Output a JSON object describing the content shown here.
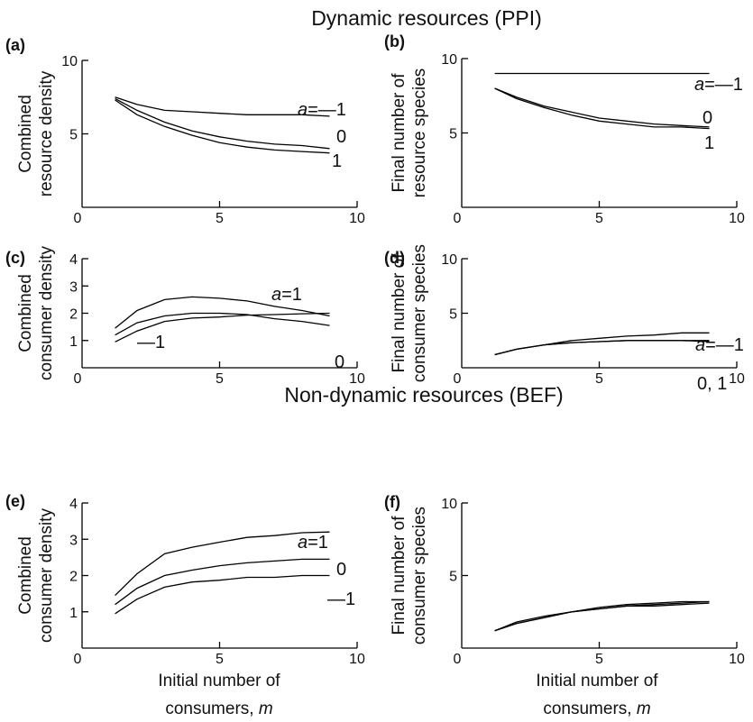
{
  "figure": {
    "sections": [
      {
        "key": "top",
        "title": "Dynamic resources (PPI)"
      },
      {
        "key": "bottom",
        "title": "Non-dynamic resources (BEF)"
      }
    ],
    "x_axis_title_lines": [
      "Initial number of",
      "consumers, "
    ],
    "x_axis_title_var": "m"
  },
  "chart_data": [
    {
      "panel": "(a)",
      "type": "line",
      "ylabel_lines": [
        "Combined",
        "resource density"
      ],
      "xlim": [
        0,
        10
      ],
      "ylim": [
        0,
        10
      ],
      "xticks": [
        0,
        5,
        10
      ],
      "yticks": [
        5,
        10
      ],
      "series": [
        {
          "x": [
            1.2,
            2,
            3,
            4,
            5,
            6,
            7,
            8,
            9
          ],
          "values": [
            7.5,
            7.0,
            6.6,
            6.5,
            6.4,
            6.3,
            6.3,
            6.3,
            6.2
          ],
          "label_parts": [
            "a",
            "=—1"
          ]
        },
        {
          "x": [
            1.2,
            2,
            3,
            4,
            5,
            6,
            7,
            8,
            9
          ],
          "values": [
            7.4,
            6.6,
            5.8,
            5.2,
            4.8,
            4.5,
            4.3,
            4.2,
            4.0
          ],
          "label_parts": [
            "",
            "0"
          ]
        },
        {
          "x": [
            1.2,
            2,
            3,
            4,
            5,
            6,
            7,
            8,
            9
          ],
          "values": [
            7.3,
            6.3,
            5.5,
            4.9,
            4.4,
            4.1,
            3.9,
            3.8,
            3.7
          ],
          "label_parts": [
            "",
            "1"
          ]
        }
      ]
    },
    {
      "panel": "(b)",
      "type": "line",
      "ylabel_lines": [
        "Final number of",
        "resource species"
      ],
      "xlim": [
        0,
        10
      ],
      "ylim": [
        0,
        10
      ],
      "xticks": [
        0,
        5,
        10
      ],
      "yticks": [
        5,
        10
      ],
      "series": [
        {
          "x": [
            1.2,
            2,
            3,
            4,
            5,
            6,
            7,
            8,
            9
          ],
          "values": [
            9,
            9,
            9,
            9,
            9,
            9,
            9,
            9,
            9
          ],
          "label_parts": [
            "a",
            "=—1"
          ]
        },
        {
          "x": [
            1.2,
            2,
            3,
            4,
            5,
            6,
            7,
            8,
            9
          ],
          "values": [
            8.0,
            7.4,
            6.8,
            6.4,
            6.0,
            5.8,
            5.6,
            5.5,
            5.4
          ],
          "label_parts": [
            "",
            "0"
          ]
        },
        {
          "x": [
            1.2,
            2,
            3,
            4,
            5,
            6,
            7,
            8,
            9
          ],
          "values": [
            8.0,
            7.3,
            6.7,
            6.2,
            5.8,
            5.6,
            5.4,
            5.4,
            5.3
          ],
          "label_parts": [
            "",
            "1"
          ]
        }
      ]
    },
    {
      "panel": "(c)",
      "type": "line",
      "ylabel_lines": [
        "Combined",
        "consumer density"
      ],
      "xlim": [
        0,
        10
      ],
      "ylim": [
        0,
        4
      ],
      "xticks": [
        0,
        5,
        10
      ],
      "yticks": [
        1,
        2,
        3,
        4
      ],
      "series": [
        {
          "x": [
            1.2,
            2,
            3,
            4,
            5,
            6,
            7,
            8,
            9
          ],
          "values": [
            1.45,
            2.1,
            2.5,
            2.6,
            2.55,
            2.45,
            2.25,
            2.1,
            1.9
          ],
          "label_parts": [
            "a",
            "=1"
          ]
        },
        {
          "x": [
            1.2,
            2,
            3,
            4,
            5,
            6,
            7,
            8,
            9
          ],
          "values": [
            1.2,
            1.65,
            1.9,
            2.0,
            2.0,
            1.95,
            1.8,
            1.7,
            1.55
          ],
          "label_parts": [
            "",
            "0"
          ]
        },
        {
          "x": [
            1.2,
            2,
            3,
            4,
            5,
            6,
            7,
            8,
            9
          ],
          "values": [
            0.95,
            1.35,
            1.7,
            1.82,
            1.86,
            1.93,
            1.95,
            1.98,
            2.0
          ],
          "label_parts": [
            "",
            "—1"
          ]
        }
      ]
    },
    {
      "panel": "(d)",
      "type": "line",
      "ylabel_lines": [
        "Final number of",
        "consumer species"
      ],
      "xlim": [
        0,
        10
      ],
      "ylim": [
        0,
        10
      ],
      "xticks": [
        0,
        5,
        10
      ],
      "yticks": [
        5,
        10
      ],
      "series": [
        {
          "x": [
            1.2,
            2,
            3,
            4,
            5,
            6,
            7,
            8,
            9
          ],
          "values": [
            1.2,
            1.7,
            2.1,
            2.5,
            2.7,
            2.9,
            3.0,
            3.2,
            3.2
          ],
          "label_parts": [
            "a",
            "=—1"
          ]
        },
        {
          "x": [
            1.2,
            2,
            3,
            4,
            5,
            6,
            7,
            8,
            9
          ],
          "values": [
            1.2,
            1.7,
            2.1,
            2.3,
            2.4,
            2.5,
            2.5,
            2.5,
            2.4
          ],
          "label_parts": [
            "",
            "0, 1"
          ]
        },
        {
          "x": [
            1.2,
            2,
            3,
            4,
            5,
            6,
            7,
            8,
            9
          ],
          "values": [
            1.2,
            1.7,
            2.1,
            2.3,
            2.4,
            2.5,
            2.5,
            2.5,
            2.5
          ],
          "label_parts": [
            "",
            ""
          ]
        }
      ]
    },
    {
      "panel": "(e)",
      "type": "line",
      "ylabel_lines": [
        "Combined",
        "consumer density"
      ],
      "xlim": [
        0,
        10
      ],
      "ylim": [
        0,
        4
      ],
      "xticks": [
        0,
        5,
        10
      ],
      "yticks": [
        1,
        2,
        3,
        4
      ],
      "series": [
        {
          "x": [
            1.2,
            2,
            3,
            4,
            5,
            6,
            7,
            8,
            9
          ],
          "values": [
            1.45,
            2.05,
            2.6,
            2.78,
            2.92,
            3.05,
            3.1,
            3.18,
            3.2
          ],
          "label_parts": [
            "a",
            "=1"
          ]
        },
        {
          "x": [
            1.2,
            2,
            3,
            4,
            5,
            6,
            7,
            8,
            9
          ],
          "values": [
            1.2,
            1.65,
            2.0,
            2.15,
            2.27,
            2.35,
            2.4,
            2.45,
            2.45
          ],
          "label_parts": [
            "",
            "0"
          ]
        },
        {
          "x": [
            1.2,
            2,
            3,
            4,
            5,
            6,
            7,
            8,
            9
          ],
          "values": [
            0.95,
            1.35,
            1.68,
            1.82,
            1.87,
            1.95,
            1.95,
            2.0,
            2.0
          ],
          "label_parts": [
            "",
            "—1"
          ]
        }
      ]
    },
    {
      "panel": "(f)",
      "type": "line",
      "ylabel_lines": [
        "Final number of",
        "consumer species"
      ],
      "xlim": [
        0,
        10
      ],
      "ylim": [
        0,
        10
      ],
      "xticks": [
        0,
        5,
        10
      ],
      "yticks": [
        5,
        10
      ],
      "series": [
        {
          "x": [
            1.2,
            2,
            3,
            4,
            5,
            6,
            7,
            8,
            9
          ],
          "values": [
            1.2,
            1.7,
            2.1,
            2.5,
            2.7,
            2.9,
            3.0,
            3.1,
            3.2
          ],
          "label_parts": [
            "",
            ""
          ]
        },
        {
          "x": [
            1.2,
            2,
            3,
            4,
            5,
            6,
            7,
            8,
            9
          ],
          "values": [
            1.2,
            1.7,
            2.1,
            2.5,
            2.8,
            3.0,
            3.1,
            3.2,
            3.2
          ],
          "label_parts": [
            "",
            ""
          ]
        },
        {
          "x": [
            1.2,
            2,
            3,
            4,
            5,
            6,
            7,
            8,
            9
          ],
          "values": [
            1.2,
            1.8,
            2.2,
            2.5,
            2.7,
            2.9,
            2.9,
            3.0,
            3.1
          ],
          "label_parts": [
            "",
            ""
          ]
        }
      ]
    }
  ]
}
